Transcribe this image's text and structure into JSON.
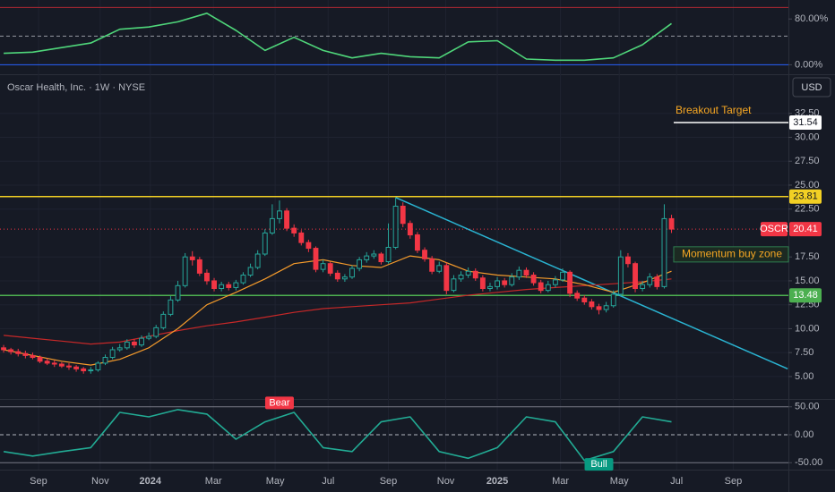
{
  "header": {
    "title": "Oscar Health, Inc. · 1W · NYSE",
    "currency": "USD"
  },
  "chart_data": [
    {
      "type": "line",
      "ylim": [
        -15,
        110
      ],
      "yticks": [
        {
          "value": 80,
          "label": "80.00%"
        },
        {
          "value": 0,
          "label": "0.00%"
        }
      ],
      "reference_lines": [
        {
          "value": 100,
          "color": "#b22833"
        },
        {
          "value": 50,
          "color": "#9598a1",
          "dash": true
        },
        {
          "value": 0,
          "color": "#2962ff"
        }
      ],
      "series": [
        {
          "color": "#4fd67a",
          "x": [
            0,
            4,
            8,
            12,
            16,
            20,
            24,
            28,
            32,
            36,
            40,
            44,
            48,
            52,
            56,
            60,
            64,
            68,
            72,
            76,
            80,
            84,
            88,
            92
          ],
          "values": [
            20,
            22,
            30,
            38,
            62,
            66,
            75,
            90,
            60,
            25,
            48,
            25,
            12,
            20,
            14,
            12,
            40,
            42,
            10,
            8,
            8,
            12,
            35,
            72
          ]
        }
      ]
    },
    {
      "type": "candlestick",
      "xlim": [
        -0.5,
        108.1
      ],
      "ylim": [
        2.75,
        36.4
      ],
      "grid": true,
      "up_color": "#26a69a",
      "down_color": "#f23645",
      "xticks": [
        {
          "value": 4.8,
          "label": "Sep"
        },
        {
          "value": 13.3,
          "label": "Nov"
        },
        {
          "value": 20.2,
          "label": "2024"
        },
        {
          "value": 28.9,
          "label": "Mar"
        },
        {
          "value": 37.4,
          "label": "May"
        },
        {
          "value": 44.7,
          "label": "Jul"
        },
        {
          "value": 53,
          "label": "Sep"
        },
        {
          "value": 60.9,
          "label": "Nov"
        },
        {
          "value": 68,
          "label": "2025"
        },
        {
          "value": 76.7,
          "label": "Mar"
        },
        {
          "value": 84.8,
          "label": "May"
        },
        {
          "value": 92.7,
          "label": "Jul"
        },
        {
          "value": 100.5,
          "label": "Sep"
        }
      ],
      "yticks": [
        {
          "value": 32.5,
          "label": "32.50"
        },
        {
          "value": 30,
          "label": "30.00"
        },
        {
          "value": 27.5,
          "label": "27.50"
        },
        {
          "value": 25,
          "label": "25.00"
        },
        {
          "value": 22.5,
          "label": "22.50"
        },
        {
          "value": 17.5,
          "label": "17.50"
        },
        {
          "value": 15,
          "label": "15.00"
        },
        {
          "value": 12.5,
          "label": "12.50"
        },
        {
          "value": 10,
          "label": "10.00"
        },
        {
          "value": 7.5,
          "label": "7.50"
        },
        {
          "value": 5,
          "label": "5.00"
        }
      ],
      "open": [
        8.0,
        7.8,
        7.6,
        7.4,
        7.2,
        7.0,
        6.6,
        6.4,
        6.3,
        6.1,
        6.0,
        5.8,
        5.6,
        5.7,
        6.4,
        7.0,
        7.8,
        8.0,
        8.6,
        8.3,
        9.0,
        9.2,
        10.1,
        11.5,
        13.0,
        14.5,
        17.5,
        17.2,
        15.8,
        15.0,
        14.2,
        14.6,
        14.3,
        14.8,
        15.6,
        16.4,
        17.8,
        20.0,
        21.5,
        22.3,
        20.5,
        20.0,
        19.0,
        18.4,
        16.2,
        16.8,
        15.8,
        15.2,
        15.4,
        16.3,
        17.2,
        17.6,
        17.8,
        17.0,
        18.5,
        22.8,
        21.0,
        19.8,
        18.2,
        17.3,
        16.0,
        16.6,
        14.0,
        15.2,
        15.6,
        16.0,
        15.3,
        14.2,
        14.4,
        15.0,
        14.6,
        15.4,
        16.1,
        15.6,
        14.8,
        14.0,
        14.6,
        15.1,
        15.9,
        13.7,
        13.2,
        12.8,
        12.3,
        12.0,
        12.4,
        13.6,
        17.5,
        16.8,
        14.2,
        14.6,
        15.4,
        14.4,
        21.5
      ],
      "high": [
        8.3,
        8.0,
        7.9,
        7.7,
        7.5,
        7.2,
        6.9,
        6.7,
        6.5,
        6.4,
        6.2,
        6.0,
        6.0,
        6.6,
        7.3,
        8.1,
        8.4,
        8.9,
        8.9,
        9.3,
        9.6,
        10.4,
        11.8,
        13.4,
        15.0,
        17.9,
        18.1,
        17.5,
        16.2,
        15.3,
        14.9,
        14.9,
        15.1,
        15.9,
        16.8,
        18.2,
        20.4,
        23.0,
        23.4,
        22.6,
        20.9,
        20.3,
        19.3,
        18.6,
        17.2,
        17.0,
        16.1,
        15.7,
        16.6,
        17.5,
        18.0,
        18.2,
        18.0,
        21.0,
        23.7,
        23.2,
        21.3,
        20.1,
        18.5,
        17.6,
        17.0,
        16.9,
        15.6,
        16.0,
        16.4,
        16.3,
        15.6,
        14.8,
        15.4,
        15.3,
        15.8,
        16.5,
        16.4,
        15.9,
        15.1,
        15.0,
        15.5,
        16.3,
        16.1,
        14.0,
        13.5,
        13.1,
        12.6,
        12.8,
        14.0,
        18.2,
        17.9,
        17.0,
        15.0,
        15.8,
        15.7,
        23.0,
        21.9
      ],
      "low": [
        7.5,
        7.3,
        7.1,
        6.9,
        6.8,
        6.4,
        6.2,
        6.0,
        5.9,
        5.7,
        5.5,
        5.3,
        5.3,
        5.5,
        6.2,
        6.8,
        7.6,
        7.8,
        8.0,
        8.1,
        8.8,
        9.0,
        9.9,
        11.3,
        12.8,
        14.3,
        16.6,
        15.5,
        14.6,
        13.9,
        13.9,
        14.0,
        14.0,
        14.6,
        15.4,
        16.2,
        17.6,
        19.8,
        21.0,
        20.2,
        19.6,
        18.7,
        18.0,
        15.9,
        15.9,
        15.5,
        14.9,
        14.9,
        15.2,
        16.0,
        16.9,
        17.3,
        16.7,
        16.8,
        18.3,
        20.6,
        19.4,
        17.9,
        17.0,
        15.7,
        15.8,
        13.6,
        13.8,
        14.9,
        15.3,
        15.0,
        13.9,
        13.9,
        14.1,
        14.3,
        14.4,
        15.1,
        15.3,
        14.5,
        13.7,
        13.8,
        14.3,
        14.9,
        13.3,
        12.9,
        12.5,
        12.0,
        11.5,
        11.7,
        12.2,
        13.4,
        16.4,
        13.8,
        13.9,
        14.3,
        14.1,
        14.2,
        20.0
      ],
      "close": [
        7.8,
        7.6,
        7.4,
        7.2,
        7.0,
        6.6,
        6.4,
        6.3,
        6.1,
        6.0,
        5.8,
        5.6,
        5.7,
        6.4,
        7.0,
        7.8,
        8.0,
        8.6,
        8.3,
        9.0,
        9.2,
        10.1,
        11.5,
        13.0,
        14.5,
        17.5,
        17.2,
        15.8,
        15.0,
        14.2,
        14.6,
        14.3,
        14.8,
        15.6,
        16.4,
        17.8,
        20.0,
        21.5,
        22.3,
        20.5,
        20.0,
        19.0,
        18.4,
        16.2,
        16.8,
        15.8,
        15.2,
        15.4,
        16.3,
        17.2,
        17.6,
        17.8,
        17.0,
        18.5,
        22.8,
        21.0,
        19.8,
        18.2,
        17.3,
        16.0,
        16.6,
        14.0,
        15.2,
        15.6,
        16.0,
        15.3,
        14.2,
        14.4,
        15.0,
        14.6,
        15.4,
        16.1,
        15.6,
        14.8,
        14.0,
        14.6,
        15.1,
        15.9,
        13.7,
        13.2,
        12.8,
        12.3,
        12.0,
        12.4,
        13.6,
        17.5,
        16.8,
        14.2,
        14.6,
        15.4,
        14.4,
        21.5,
        20.41
      ],
      "series": [
        {
          "color": "#c62828",
          "x": [
            0,
            4,
            8,
            12,
            16,
            20,
            24,
            28,
            32,
            36,
            40,
            44,
            48,
            52,
            56,
            60,
            64,
            68,
            72,
            76,
            80,
            84,
            88,
            92
          ],
          "values": [
            9.3,
            9.0,
            8.7,
            8.4,
            8.6,
            9.2,
            9.8,
            10.3,
            10.7,
            11.2,
            11.7,
            12.1,
            12.3,
            12.5,
            12.7,
            13.1,
            13.5,
            13.8,
            14.1,
            14.3,
            14.5,
            14.7,
            14.9,
            15.2
          ]
        },
        {
          "color": "#f59b2b",
          "x": [
            0,
            4,
            8,
            12,
            16,
            20,
            24,
            28,
            32,
            36,
            40,
            44,
            48,
            52,
            56,
            60,
            64,
            68,
            72,
            76,
            80,
            84,
            88,
            92
          ],
          "values": [
            7.8,
            7.2,
            6.6,
            6.2,
            6.8,
            8.0,
            10.0,
            12.5,
            13.8,
            15.2,
            16.8,
            17.2,
            16.6,
            16.4,
            17.6,
            17.2,
            16.0,
            15.6,
            15.4,
            15.2,
            14.6,
            13.8,
            14.8,
            16.0
          ]
        }
      ],
      "levels": [
        {
          "value": 23.81,
          "color": "#f2d024"
        },
        {
          "value": 13.48,
          "color": "#4caf50"
        }
      ],
      "last_price": {
        "symbol": "OSCR",
        "value": 20.41,
        "color": "#f23645"
      },
      "target": {
        "label": "Breakout Target",
        "value": 31.54,
        "from": 92.3
      },
      "zone": {
        "label": "Momentum buy zone",
        "from": 92.3,
        "range": [
          16.97,
          18.56
        ]
      },
      "trendline": {
        "color": "#2ab3d1",
        "points": [
          [
            54,
            23.7
          ],
          [
            108,
            5.8
          ]
        ]
      }
    },
    {
      "type": "line",
      "ylim": [
        -60.8,
        59.2
      ],
      "yticks": [
        {
          "value": 50,
          "label": "50.00"
        },
        {
          "value": 0,
          "label": "0.00"
        },
        {
          "value": -50,
          "label": "-50.00"
        }
      ],
      "reference_lines": [
        {
          "value": 50,
          "color": "#787b86"
        },
        {
          "value": 0,
          "color": "#b2b5be",
          "dash": true
        },
        {
          "value": -50,
          "color": "#787b86"
        }
      ],
      "series": [
        {
          "color": "#22ab94",
          "x": [
            0,
            4,
            8,
            12,
            16,
            20,
            24,
            28,
            32,
            36,
            40,
            44,
            48,
            52,
            56,
            60,
            64,
            68,
            72,
            76,
            80,
            84,
            88,
            92
          ],
          "values": [
            -30,
            -38,
            -30,
            -23,
            40,
            32,
            45,
            37,
            -8,
            23,
            40,
            -23,
            -30,
            23,
            32,
            -30,
            -42,
            -23,
            32,
            23,
            -46,
            -30,
            32,
            23
          ]
        }
      ],
      "annotations": [
        {
          "text": "Bear",
          "x": 38,
          "y": 57,
          "color": "#f23645"
        },
        {
          "text": "Bull",
          "x": 82,
          "y": -53,
          "color": "#089981"
        }
      ]
    }
  ]
}
